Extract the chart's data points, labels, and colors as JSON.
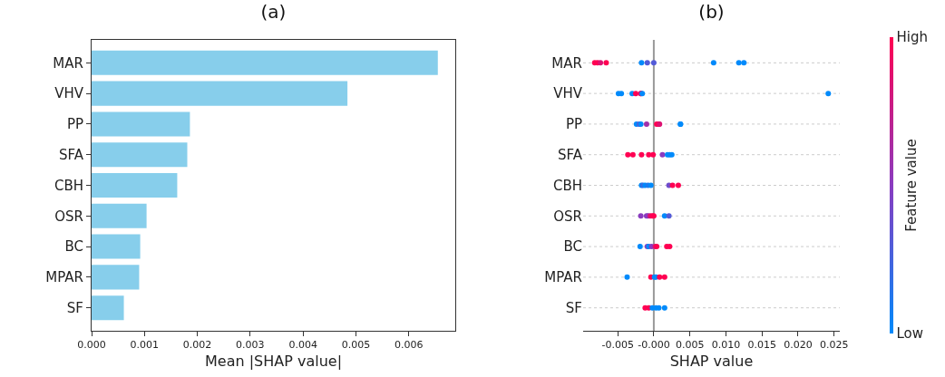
{
  "chart_data": [
    {
      "type": "bar",
      "title": "(a)",
      "orientation": "horizontal",
      "categories": [
        "MAR",
        "VHV",
        "PP",
        "SFA",
        "CBH",
        "OSR",
        "BC",
        "MPAR",
        "SF"
      ],
      "values": [
        0.00655,
        0.00484,
        0.00186,
        0.00181,
        0.00162,
        0.00104,
        0.00092,
        0.0009,
        0.00061
      ],
      "color": "#87ceeb",
      "xlabel": "Mean |SHAP value|",
      "xlim": [
        0,
        0.00688
      ],
      "xticks": [
        {
          "value": 0,
          "label": "0.000"
        },
        {
          "value": 0.001,
          "label": "0.001"
        },
        {
          "value": 0.002,
          "label": "0.002"
        },
        {
          "value": 0.003,
          "label": "0.003"
        },
        {
          "value": 0.004,
          "label": "0.004"
        },
        {
          "value": 0.005,
          "label": "0.005"
        },
        {
          "value": 0.006,
          "label": "0.006"
        }
      ]
    },
    {
      "type": "scatter",
      "title": "(b)",
      "orientation": "horizontal",
      "categories": [
        "MAR",
        "VHV",
        "PP",
        "SFA",
        "CBH",
        "OSR",
        "BC",
        "MPAR",
        "SF"
      ],
      "series": [
        {
          "x": [
            "MAR",
            "MAR",
            "MAR",
            "MAR",
            "MAR",
            "MAR",
            "MAR",
            "MAR",
            "MAR",
            "MAR",
            "VHV",
            "VHV",
            "VHV",
            "VHV",
            "VHV",
            "VHV",
            "VHV",
            "VHV",
            "PP",
            "PP",
            "PP",
            "PP",
            "PP",
            "PP",
            "PP",
            "PP",
            "PP",
            "SFA",
            "SFA",
            "SFA",
            "SFA",
            "SFA",
            "SFA",
            "SFA",
            "SFA",
            "SFA",
            "CBH",
            "CBH",
            "CBH",
            "CBH",
            "CBH",
            "CBH",
            "CBH",
            "CBH",
            "OSR",
            "OSR",
            "OSR",
            "OSR",
            "OSR",
            "OSR",
            "OSR",
            "OSR",
            "BC",
            "BC",
            "BC",
            "BC",
            "BC",
            "BC",
            "BC",
            "BC",
            "MPAR",
            "MPAR",
            "MPAR",
            "MPAR",
            "MPAR",
            "MPAR",
            "SF",
            "SF",
            "SF",
            "SF",
            "SF",
            "SF"
          ],
          "values": [
            -0.0082,
            -0.0078,
            -0.0074,
            -0.0066,
            -0.0017,
            -0.0009,
            0,
            0.0083,
            0.0118,
            0.0125,
            -0.0049,
            -0.0045,
            -0.003,
            -0.0025,
            -0.0018,
            -0.0018,
            -0.0016,
            0.0242,
            -0.0024,
            -0.002,
            -0.0018,
            -0.001,
            0.0004,
            0.0007,
            0.0008,
            0.0037,
            0.0037,
            -0.0036,
            -0.0029,
            -0.0017,
            -0.0007,
            -0.0001,
            0.0012,
            0.0019,
            0.0022,
            0.0025,
            -0.0017,
            -0.0015,
            -0.0012,
            -0.0008,
            -0.0004,
            0.0021,
            0.0026,
            0.0034,
            -0.0018,
            -0.001,
            -0.0008,
            -0.0005,
            -0.0002,
            0,
            0.0015,
            0.0021,
            -0.0019,
            -0.0009,
            -0.0007,
            -0.0003,
            0.0002,
            0.0004,
            0.0018,
            0.0022,
            -0.0037,
            -0.0004,
            0.0001,
            0.0003,
            0.0008,
            0.0015,
            -0.0012,
            -0.0007,
            -0.0002,
            0.0003,
            0.0007,
            0.0015
          ],
          "cvalues": [
            1,
            1,
            0.85,
            1,
            0,
            0.3,
            0.3,
            0,
            0,
            0,
            0,
            0,
            0,
            1,
            1,
            0.85,
            0,
            0,
            0,
            0.3,
            0,
            0.6,
            1,
            1,
            0.85,
            0,
            0,
            1,
            1,
            1,
            1,
            1,
            0.5,
            0,
            0,
            0,
            0,
            0.2,
            0,
            0.1,
            0,
            0.4,
            1,
            1,
            0.5,
            0.5,
            0.5,
            0.85,
            1,
            1,
            0,
            0.3,
            0,
            0.5,
            0,
            0.5,
            0.85,
            1,
            1,
            1,
            0,
            1,
            0,
            0,
            1,
            1,
            1,
            1,
            0,
            0,
            0,
            0
          ]
        }
      ],
      "xlabel": "SHAP value",
      "clabel": "Feature value",
      "clim": [
        0,
        1
      ],
      "cticks": [
        {
          "value": 0,
          "label": "Low"
        },
        {
          "value": 1,
          "label": "High"
        }
      ],
      "xlim": [
        -0.0098,
        0.0258
      ],
      "xticks": [
        {
          "value": -0.005,
          "label": "-0.005"
        },
        {
          "value": 0,
          "label": "-0.000"
        },
        {
          "value": 0.005,
          "label": "0.005"
        },
        {
          "value": 0.01,
          "label": "0.010"
        },
        {
          "value": 0.015,
          "label": "0.015"
        },
        {
          "value": 0.02,
          "label": "0.020"
        },
        {
          "value": 0.025,
          "label": "0.025"
        }
      ],
      "grid": "y",
      "ref_lines": [
        {
          "axis": "x",
          "value": 0,
          "color": "#999999"
        }
      ]
    }
  ]
}
